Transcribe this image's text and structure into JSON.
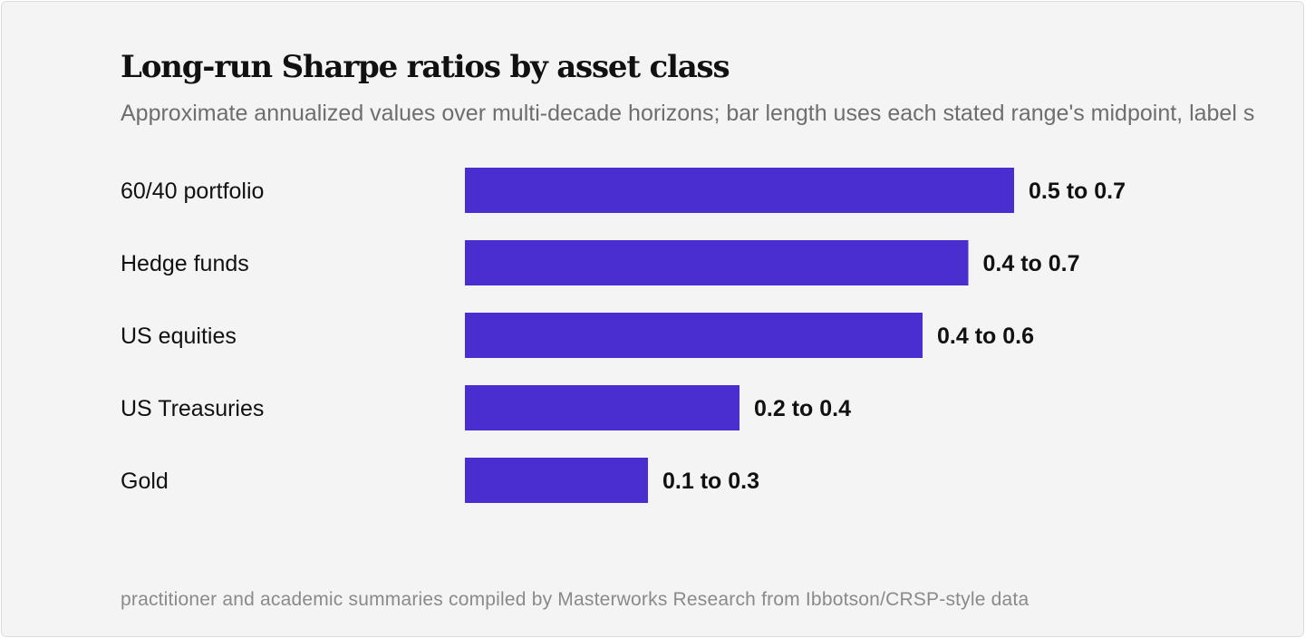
{
  "title": "Long-run Sharpe ratios by asset class",
  "subtitle": "Approximate annualized values over multi-decade horizons; bar length uses each stated range's midpoint, label s",
  "source": "practitioner and academic summaries compiled by Masterworks Research from Ibbotson/CRSP-style data",
  "colors": {
    "bar": "#4b2ecf",
    "background": "#f4f4f4"
  },
  "chart_data": {
    "type": "bar",
    "orientation": "horizontal",
    "categories": [
      "60/40 portfolio",
      "Hedge funds",
      "US equities",
      "US Treasuries",
      "Gold"
    ],
    "values": [
      0.6,
      0.55,
      0.5,
      0.3,
      0.2
    ],
    "value_labels": [
      "0.5 to 0.7",
      "0.4 to 0.7",
      "0.4 to 0.6",
      "0.2 to 0.4",
      "0.1 to 0.3"
    ],
    "xlim": [
      0,
      0.7
    ],
    "grid": false,
    "legend": "none"
  }
}
